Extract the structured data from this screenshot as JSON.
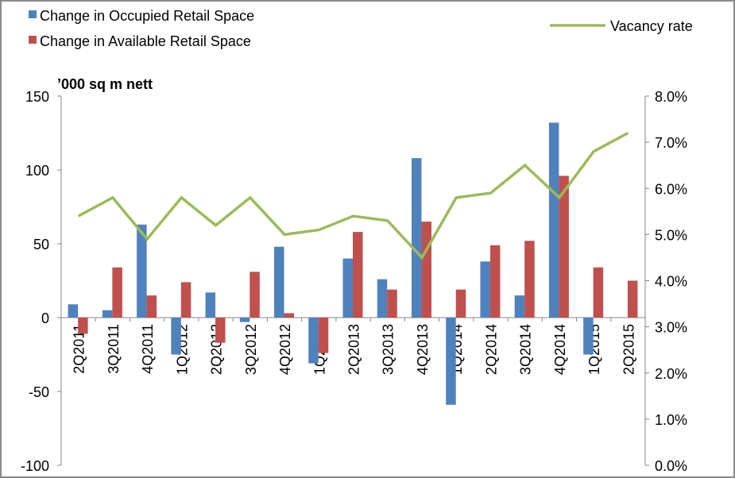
{
  "chart_data": {
    "type": "bar+line",
    "categories": [
      "2Q2011",
      "3Q2011",
      "4Q2011",
      "1Q2012",
      "2Q2012",
      "3Q2012",
      "4Q2012",
      "1Q2013",
      "2Q2013",
      "3Q2013",
      "4Q2013",
      "1Q2014",
      "2Q2014",
      "3Q2014",
      "4Q2014",
      "1Q2015",
      "2Q2015"
    ],
    "series": [
      {
        "name": "Change in Occupied Retail Space",
        "type": "bar",
        "axis": "left",
        "color": "#4F81BD",
        "values": [
          9,
          5,
          63,
          -25,
          17,
          -3,
          48,
          -31,
          40,
          26,
          108,
          -59,
          38,
          15,
          132,
          -25,
          0
        ]
      },
      {
        "name": "Change in Available Retail Space",
        "type": "bar",
        "axis": "left",
        "color": "#C0504D",
        "values": [
          -11,
          34,
          15,
          24,
          -17,
          31,
          3,
          -24,
          58,
          19,
          65,
          19,
          49,
          52,
          96,
          34,
          25
        ]
      },
      {
        "name": "Vacancy rate",
        "type": "line",
        "axis": "right",
        "color": "#9BBB59",
        "values": [
          5.4,
          5.8,
          4.9,
          5.8,
          5.2,
          5.8,
          5.0,
          5.1,
          5.4,
          5.3,
          4.5,
          5.8,
          5.9,
          6.5,
          5.8,
          6.8,
          7.2
        ]
      }
    ],
    "ylabel": "’000 sq m nett",
    "ylim": [
      -100,
      150
    ],
    "yticks": [
      "150",
      "100",
      "50",
      "0",
      "-50",
      "-100"
    ],
    "y2lim": [
      0,
      8
    ],
    "y2ticks": [
      "8.0%",
      "7.0%",
      "6.0%",
      "5.0%",
      "4.0%",
      "3.0%",
      "2.0%",
      "1.0%",
      "0.0%"
    ],
    "grid": false,
    "legend": "top"
  }
}
